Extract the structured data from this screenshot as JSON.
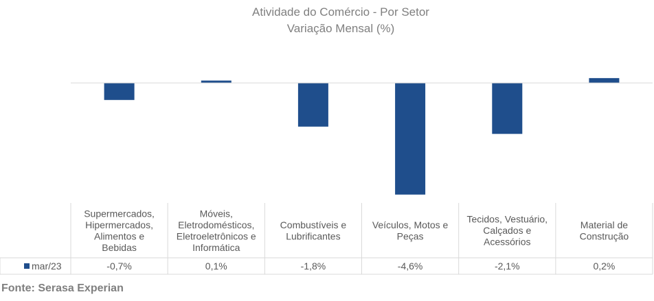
{
  "chart_data": {
    "type": "bar",
    "title": "Atividade do Comércio - Por Setor",
    "subtitle": "Variação Mensal (%)",
    "categories": [
      [
        "Supermercados,",
        "Hipermercados,",
        "Alimentos e",
        "Bebidas"
      ],
      [
        "Móveis,",
        "Eletrodomésticos,",
        "Eletroeletrônicos e",
        "Informática"
      ],
      [
        "Combustíveis e",
        "Lubrificantes"
      ],
      [
        "Veículos, Motos e",
        "Peças"
      ],
      [
        "Tecidos, Vestuário,",
        "Calçados e",
        "Acessórios"
      ],
      [
        "Material de",
        "Construção"
      ]
    ],
    "series": [
      {
        "name": "mar/23",
        "values": [
          -0.7,
          0.1,
          -1.8,
          -4.6,
          -2.1,
          0.2
        ],
        "labels": [
          "-0,7%",
          "0,1%",
          "-1,8%",
          "-4,6%",
          "-2,1%",
          "0,2%"
        ],
        "color": "#1f4e8c"
      }
    ],
    "data_table": true,
    "grid": false,
    "legend": "data-table-left"
  },
  "source": "Fonte: Serasa Experian"
}
